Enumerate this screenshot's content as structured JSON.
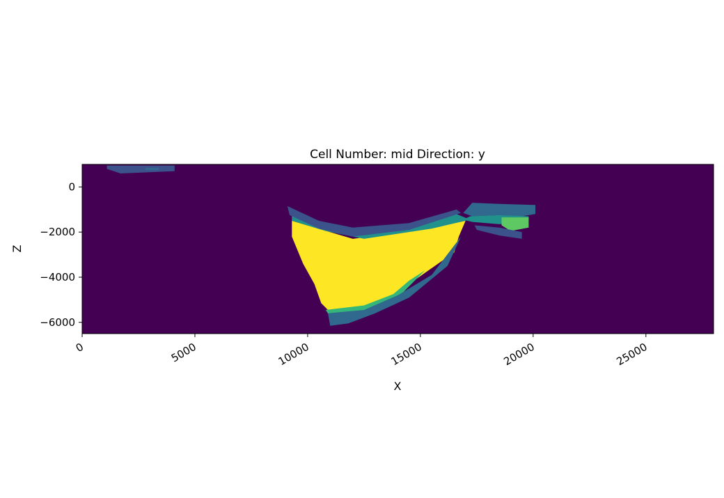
{
  "chart_data": {
    "type": "heatmap",
    "title": "Cell Number: mid Direction: y",
    "xlabel": "X",
    "ylabel": "Z",
    "xlim": [
      0,
      28000
    ],
    "ylim": [
      -6500,
      1000
    ],
    "xticks": [
      0,
      5000,
      10000,
      15000,
      20000,
      25000
    ],
    "xtick_labels": [
      "0",
      "5000",
      "10000",
      "15000",
      "20000",
      "25000"
    ],
    "yticks": [
      0,
      -2000,
      -4000,
      -6000
    ],
    "ytick_labels": [
      "0",
      "−2000",
      "−4000",
      "−6000"
    ],
    "grid": false,
    "colormap": "viridis",
    "background_color": "#440154",
    "units": [
      {
        "color": "#fde725",
        "polygon": [
          [
            9300,
            -1500
          ],
          [
            12000,
            -2300
          ],
          [
            15000,
            -1900
          ],
          [
            17000,
            -1500
          ],
          [
            16700,
            -2200
          ],
          [
            16500,
            -2900
          ],
          [
            15500,
            -3600
          ],
          [
            14500,
            -4300
          ],
          [
            13800,
            -4850
          ],
          [
            12500,
            -5350
          ],
          [
            11000,
            -5550
          ],
          [
            10600,
            -5150
          ],
          [
            10300,
            -4300
          ],
          [
            9800,
            -3400
          ],
          [
            9300,
            -2200
          ]
        ]
      },
      {
        "color": "#35b779",
        "polygon": [
          [
            10800,
            -5450
          ],
          [
            12500,
            -5250
          ],
          [
            13800,
            -4750
          ],
          [
            14500,
            -4150
          ],
          [
            15200,
            -3700
          ],
          [
            14200,
            -4700
          ],
          [
            13200,
            -5300
          ],
          [
            12000,
            -5650
          ],
          [
            11000,
            -5750
          ]
        ]
      },
      {
        "color": "#31688e",
        "polygon": [
          [
            10900,
            -5600
          ],
          [
            12500,
            -5450
          ],
          [
            14000,
            -4800
          ],
          [
            15500,
            -3900
          ],
          [
            16800,
            -2200
          ],
          [
            16200,
            -3500
          ],
          [
            14500,
            -4900
          ],
          [
            13000,
            -5600
          ],
          [
            11800,
            -6050
          ],
          [
            11000,
            -6150
          ]
        ]
      },
      {
        "color": "#21918c",
        "polygon": [
          [
            9300,
            -1200
          ],
          [
            10500,
            -1700
          ],
          [
            12000,
            -2050
          ],
          [
            14500,
            -1800
          ],
          [
            16600,
            -1200
          ],
          [
            17200,
            -1450
          ],
          [
            15500,
            -1850
          ],
          [
            12500,
            -2300
          ],
          [
            10800,
            -1950
          ],
          [
            9300,
            -1500
          ]
        ]
      },
      {
        "color": "#3b528b",
        "polygon": [
          [
            9100,
            -850
          ],
          [
            10500,
            -1500
          ],
          [
            12000,
            -1800
          ],
          [
            14500,
            -1600
          ],
          [
            16600,
            -1000
          ],
          [
            16800,
            -1150
          ],
          [
            14500,
            -1900
          ],
          [
            12000,
            -2200
          ],
          [
            10500,
            -1850
          ],
          [
            9200,
            -1250
          ]
        ]
      },
      {
        "color": "#31688e",
        "polygon": [
          [
            17300,
            -700
          ],
          [
            18500,
            -750
          ],
          [
            20100,
            -800
          ],
          [
            20100,
            -1200
          ],
          [
            19500,
            -1300
          ],
          [
            18500,
            -1250
          ],
          [
            17300,
            -1300
          ],
          [
            16900,
            -1150
          ]
        ]
      },
      {
        "color": "#21918c",
        "polygon": [
          [
            17200,
            -1300
          ],
          [
            18500,
            -1250
          ],
          [
            19800,
            -1300
          ],
          [
            19800,
            -1500
          ],
          [
            18500,
            -1650
          ],
          [
            17300,
            -1550
          ],
          [
            16900,
            -1450
          ]
        ]
      },
      {
        "color": "#5ec962",
        "polygon": [
          [
            18600,
            -1350
          ],
          [
            19800,
            -1350
          ],
          [
            19800,
            -1800
          ],
          [
            19000,
            -1950
          ],
          [
            18600,
            -1700
          ]
        ]
      },
      {
        "color": "#3b528b",
        "polygon": [
          [
            17400,
            -1700
          ],
          [
            18500,
            -1800
          ],
          [
            19500,
            -2000
          ],
          [
            19500,
            -2300
          ],
          [
            18500,
            -2150
          ],
          [
            17500,
            -1900
          ]
        ]
      },
      {
        "color": "#3b528b",
        "polygon": [
          [
            1100,
            950
          ],
          [
            4100,
            950
          ],
          [
            4100,
            700
          ],
          [
            1700,
            600
          ],
          [
            1100,
            800
          ]
        ]
      },
      {
        "color": "#31688e",
        "polygon": [
          [
            2800,
            850
          ],
          [
            3400,
            850
          ],
          [
            3400,
            750
          ],
          [
            2800,
            750
          ]
        ]
      }
    ]
  }
}
